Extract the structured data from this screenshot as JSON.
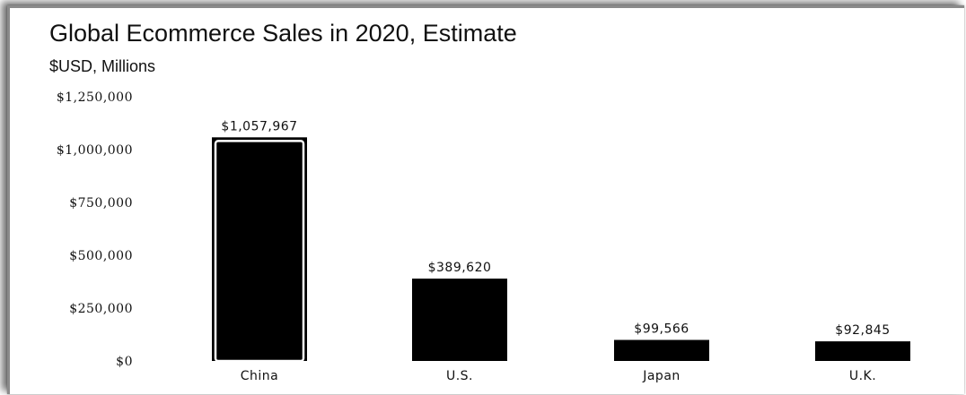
{
  "chart_data": {
    "type": "bar",
    "title": "Global Ecommerce Sales in 2020, Estimate",
    "subtitle": "$USD, Millions",
    "xlabel": "",
    "ylabel": "",
    "categories": [
      "China",
      "U.S.",
      "Japan",
      "U.K."
    ],
    "values": [
      1057967,
      389620,
      99566,
      92845
    ],
    "data_labels": [
      "$1,057,967",
      "$389,620",
      "$99,566",
      "$92,845"
    ],
    "yticks": [
      0,
      250000,
      500000,
      750000,
      1000000,
      1250000
    ],
    "ytick_labels": [
      "$0",
      "$250,000",
      "$500,000",
      "$750,000",
      "$1,000,000",
      "$1,250,000"
    ],
    "ylim": [
      0,
      1250000
    ],
    "grid": false,
    "legend": "none",
    "colors": {
      "bar": "#000000",
      "highlight_outline": "#000000"
    },
    "highlighted_category": "China"
  }
}
